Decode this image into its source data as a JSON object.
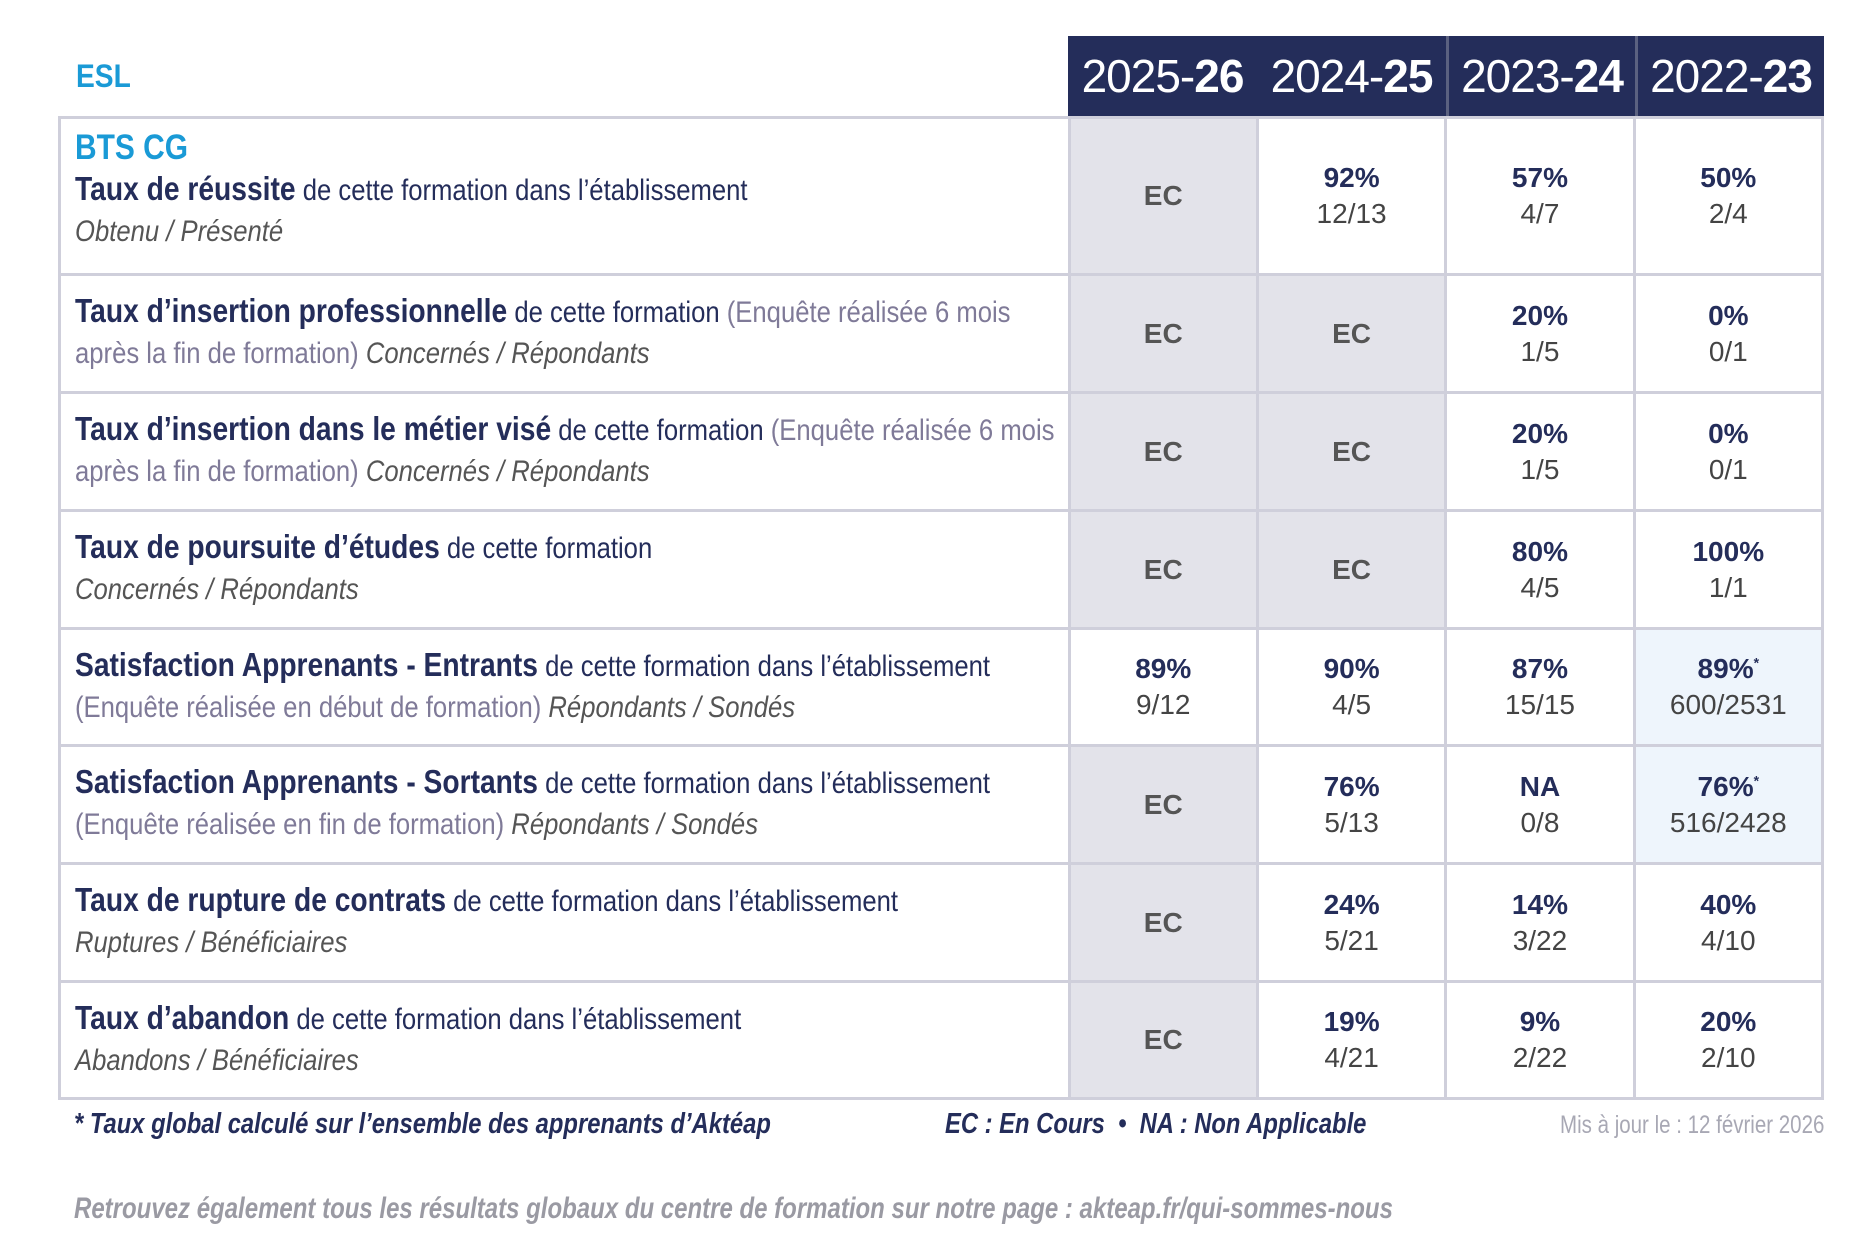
{
  "section_label": "ESL",
  "years": [
    {
      "start": "2025-",
      "end": "26"
    },
    {
      "start": "2024-",
      "end": "25"
    },
    {
      "start": "2023-",
      "end": "24"
    },
    {
      "start": "2022-",
      "end": "23"
    }
  ],
  "formation": "BTS CG",
  "rows": [
    {
      "title": "Taux de réussite",
      "desc": " de cette formation dans l’établissement",
      "paren": "",
      "ratio_label": "Obtenu / Présenté",
      "cells": [
        {
          "status": "EC"
        },
        {
          "pct": "92%",
          "ratio": "12/13"
        },
        {
          "pct": "57%",
          "ratio": "4/7"
        },
        {
          "pct": "50%",
          "ratio": "2/4"
        }
      ]
    },
    {
      "title": "Taux d’insertion professionnelle",
      "desc": " de cette formation ",
      "paren": "(Enquête réalisée 6 mois après la fin de formation)",
      "ratio_label": " Concernés / Répondants",
      "cells": [
        {
          "status": "EC"
        },
        {
          "status": "EC"
        },
        {
          "pct": "20%",
          "ratio": "1/5"
        },
        {
          "pct": "0%",
          "ratio": "0/1"
        }
      ]
    },
    {
      "title": "Taux d’insertion dans le métier visé",
      "desc": " de cette formation ",
      "paren": "(Enquête réalisée 6 mois après la fin de formation)",
      "ratio_label": " Concernés / Répondants",
      "cells": [
        {
          "status": "EC"
        },
        {
          "status": "EC"
        },
        {
          "pct": "20%",
          "ratio": "1/5"
        },
        {
          "pct": "0%",
          "ratio": "0/1"
        }
      ]
    },
    {
      "title": "Taux de poursuite d’études",
      "desc": " de cette formation",
      "paren": "",
      "ratio_label": "Concernés / Répondants",
      "cells": [
        {
          "status": "EC"
        },
        {
          "status": "EC"
        },
        {
          "pct": "80%",
          "ratio": "4/5"
        },
        {
          "pct": "100%",
          "ratio": "1/1"
        }
      ]
    },
    {
      "title": "Satisfaction Apprenants - Entrants",
      "desc": " de cette formation dans l’établissement ",
      "paren": "(Enquête réalisée en début de formation)",
      "ratio_label": " Répondants / Sondés",
      "cells": [
        {
          "pct": "89%",
          "ratio": "9/12"
        },
        {
          "pct": "90%",
          "ratio": "4/5"
        },
        {
          "pct": "87%",
          "ratio": "15/15"
        },
        {
          "pct": "89%",
          "ratio": "600/2531",
          "global": true
        }
      ]
    },
    {
      "title": "Satisfaction Apprenants - Sortants",
      "desc": " de cette formation dans l’établissement ",
      "paren": "(Enquête réalisée en fin de formation)",
      "ratio_label": " Répondants / Sondés",
      "cells": [
        {
          "status": "EC"
        },
        {
          "pct": "76%",
          "ratio": "5/13"
        },
        {
          "pct": "NA",
          "ratio": "0/8"
        },
        {
          "pct": "76%",
          "ratio": "516/2428",
          "global": true
        }
      ]
    },
    {
      "title": "Taux de rupture de contrats",
      "desc": " de cette formation dans l’établissement",
      "paren": "",
      "ratio_label": "Ruptures / Bénéficiaires",
      "cells": [
        {
          "status": "EC"
        },
        {
          "pct": "24%",
          "ratio": "5/21"
        },
        {
          "pct": "14%",
          "ratio": "3/22"
        },
        {
          "pct": "40%",
          "ratio": "4/10"
        }
      ]
    },
    {
      "title": "Taux d’abandon",
      "desc": " de cette formation dans l’établissement",
      "paren": "",
      "ratio_label": "Abandons / Bénéficiaires",
      "cells": [
        {
          "status": "EC"
        },
        {
          "pct": "19%",
          "ratio": "4/21"
        },
        {
          "pct": "9%",
          "ratio": "2/22"
        },
        {
          "pct": "20%",
          "ratio": "2/10"
        }
      ]
    }
  ],
  "footer": {
    "global_note": "* Taux global calculé sur l’ensemble des apprenants d’Aktéap",
    "legend": "EC : En Cours  •  NA : Non Applicable",
    "updated": "Mis à jour le : 12 février 2026",
    "link_note": "Retrouvez également tous les résultats globaux du centre de formation sur notre page : akteap.fr/qui-sommes-nous"
  },
  "colors": {
    "navy": "#242d5a",
    "accent_blue": "#1a9ad6",
    "ec_background": "#e3e3ea",
    "global_background": "#eef5fc"
  }
}
